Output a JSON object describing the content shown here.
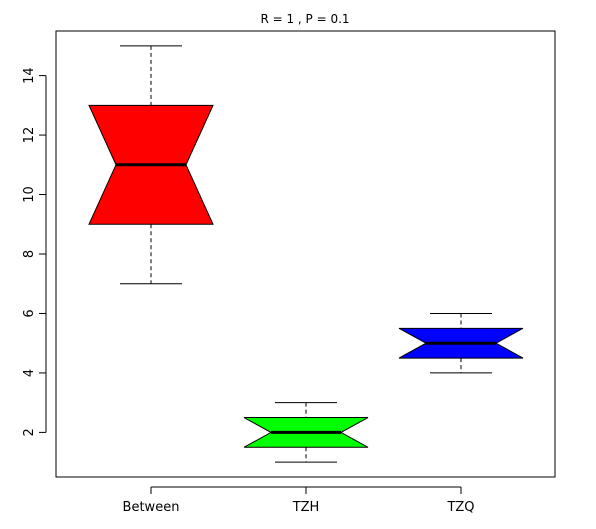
{
  "chart_data": {
    "type": "box",
    "title": "R = 1 , P = 0.1",
    "xlabel": "",
    "ylabel": "",
    "ylim": [
      0.5,
      15.5
    ],
    "y_ticks": [
      2,
      4,
      6,
      8,
      10,
      12,
      14
    ],
    "y_tick_labels": [
      "2",
      "4",
      "6",
      "8",
      "10",
      "12",
      "14"
    ],
    "notched": true,
    "grid": false,
    "legend": "none",
    "categories": [
      "Between",
      "TZH",
      "TZQ"
    ],
    "boxes": [
      {
        "name": "Between",
        "min": 7,
        "q1": 9,
        "median": 11,
        "q3": 13,
        "max": 15,
        "notch_low": 9,
        "notch_high": 13,
        "color": "#ff0000"
      },
      {
        "name": "TZH",
        "min": 1,
        "q1": 1.5,
        "median": 2,
        "q3": 2.5,
        "max": 3,
        "notch_low": 1.5,
        "notch_high": 2.5,
        "color": "#00ff00"
      },
      {
        "name": "TZQ",
        "min": 4,
        "q1": 4.5,
        "median": 5,
        "q3": 5.5,
        "max": 6,
        "notch_low": 4.5,
        "notch_high": 5.5,
        "color": "#0000ff"
      }
    ]
  }
}
